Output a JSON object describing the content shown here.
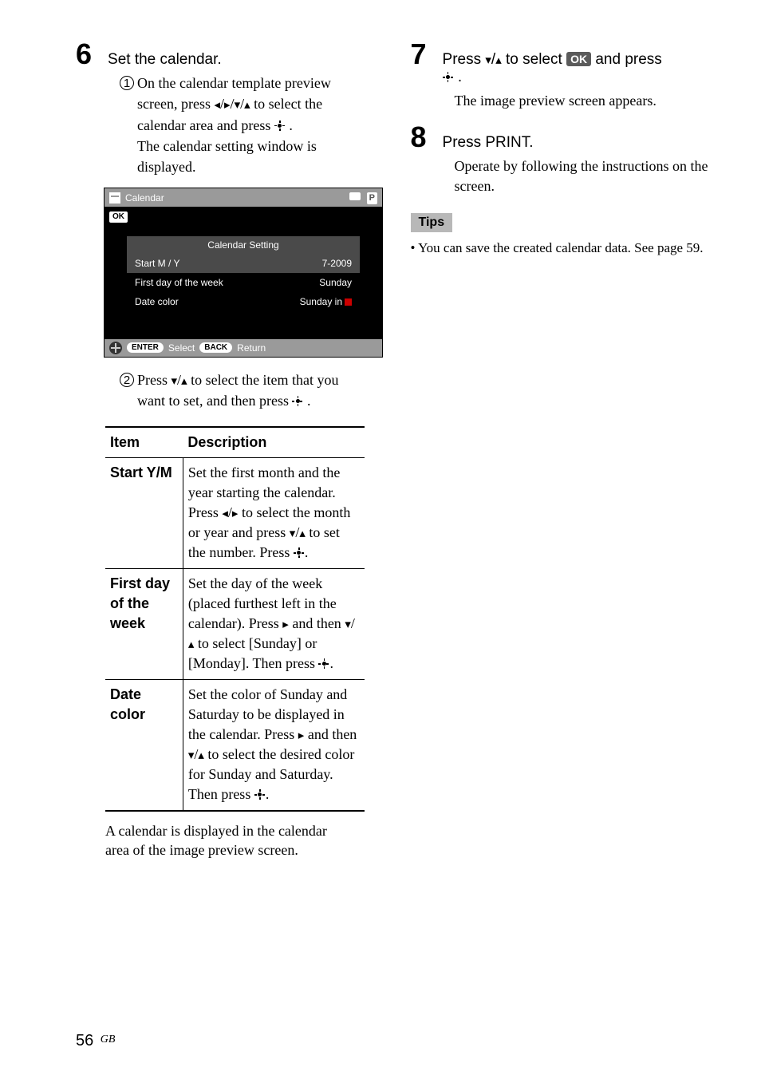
{
  "left": {
    "step6": {
      "num": "6",
      "title": "Set the calendar.",
      "sub1_num": "1",
      "sub1_line1": "On the calendar template preview",
      "sub1_line2": "screen, press ",
      "sub1_arrows": "B/b/V/v",
      "sub1_line2b": " to select the",
      "sub1_line3": "calendar area and press ",
      "sub1_line3b": ".",
      "sub1_line4": "The calendar setting window is",
      "sub1_line5": "displayed.",
      "sub2_num": "2",
      "sub2_line1a": "Press ",
      "sub2_arrows": "V/v",
      "sub2_line1b": " to select the item that you",
      "sub2_line2a": "want to set, and then press ",
      "sub2_line2b": "."
    },
    "shot": {
      "title": "Calendar",
      "ok": "OK",
      "cs_title": "Calendar Setting",
      "r1k": "Start M / Y",
      "r1v": "7-2009",
      "r2k": "First day of the week",
      "r2v": "Sunday",
      "r3k": "Date color",
      "r3v": "Sunday in",
      "bar3_enter": "ENTER",
      "bar3_select": "Select",
      "bar3_back": "BACK",
      "bar3_return": "Return",
      "p": "P"
    },
    "table": {
      "h1": "Item",
      "h2": "Description",
      "r1k": "Start Y/M",
      "r1va": "Set the first month and the year starting the calendar. Press ",
      "r1_arr1": "B/b",
      "r1vb": " to select the month or year and press ",
      "r1_arr2": "V/v",
      "r1vc": " to set the number. Press ",
      "r1vd": ".",
      "r2k": "First day of the week",
      "r2va": "Set the day of the week (placed furthest left in the calendar). Press ",
      "r2_arr1": "b",
      "r2vb": " and then ",
      "r2_arr2": "V/v",
      "r2vc": " to select [Sunday] or [Monday]. Then press ",
      "r2vd": ".",
      "r3k": "Date color",
      "r3va": "Set the color of Sunday and Saturday to be displayed in the calendar. Press ",
      "r3_arr1": "b",
      "r3vb": " and then ",
      "r3_arr2": "V/v",
      "r3vc": " to select the desired color for Sunday and Saturday. Then press ",
      "r3vd": "."
    },
    "after_table_1": "A calendar is displayed in the calendar",
    "after_table_2": "area of the image preview screen."
  },
  "right": {
    "step7": {
      "num": "7",
      "title_a": "Press ",
      "arrows": "V/v",
      "title_b": " to select ",
      "ok": "OK",
      "title_c": " and press",
      "title_d": ".",
      "body": "The image preview screen appears."
    },
    "step8": {
      "num": "8",
      "title": "Press PRINT.",
      "body": "Operate by following the instructions on the screen."
    },
    "tips_label": "Tips",
    "tip1": "• You can save the created calendar data. See page 59."
  },
  "footer": {
    "page": "56",
    "gb": "GB"
  },
  "glyphs": {
    "left": "◄",
    "right": "►",
    "down": "▼",
    "up": "▲",
    "left_s": "◂",
    "right_s": "▸",
    "down_s": "▾",
    "up_s": "▴"
  }
}
